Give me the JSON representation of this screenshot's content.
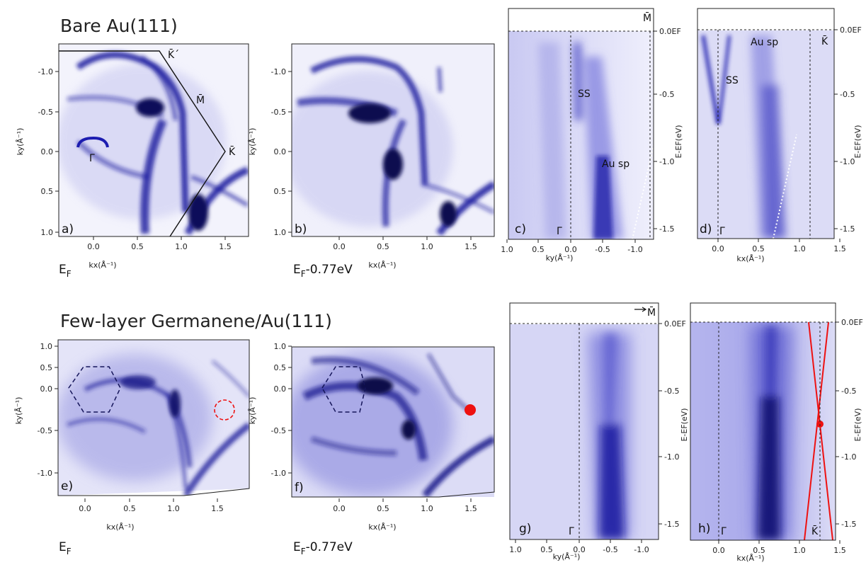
{
  "titles": {
    "top": "Bare Au(111)",
    "bottom": "Few-layer Germanene/Au(111)"
  },
  "colors": {
    "intensity": "#1a1acc",
    "background": "#ffffff",
    "dirac": "#ee1111",
    "guide": "#222222"
  },
  "panels": [
    {
      "id": "a",
      "label": "a)",
      "condition": "E",
      "condition_sub": "F",
      "xlabel": "kx(Å⁻¹)",
      "ylabel": "ky(Å⁻¹)",
      "xticks": [
        "0.0",
        "0.5",
        "1.0",
        "1.5"
      ],
      "yticks": [
        "-1.0",
        "-0.5",
        "0.0",
        "0.5",
        "1.0"
      ],
      "points": [
        "K̄´",
        "M̄",
        "K̄",
        "Γ̄"
      ]
    },
    {
      "id": "b",
      "label": "b)",
      "condition": "E",
      "condition_sub": "F",
      "condition_suffix": "-0.77eV",
      "xlabel": "kx(Å⁻¹)",
      "ylabel": "ky(Å⁻¹)",
      "xticks": [
        "0.0",
        "0.5",
        "1.0",
        "1.5"
      ],
      "yticks": [
        "-1.0",
        "-0.5",
        "0.0",
        "0.5",
        "1.0"
      ]
    },
    {
      "id": "c",
      "label": "c)",
      "xlabel": "ky(Å⁻¹)",
      "ylabel": "E-EF(eV)",
      "xticks": [
        "1.0",
        "0.5",
        "0.0",
        "-0.5",
        "-1.0"
      ],
      "eticks": [
        "0.0EF",
        "-0.5",
        "-1.0",
        "-1.5"
      ],
      "annotations": [
        "SS",
        "Au sp",
        "Γ̄",
        "M̄"
      ]
    },
    {
      "id": "d",
      "label": "d)",
      "xlabel": "kx(Å⁻¹)",
      "ylabel": "E-EF(eV)",
      "xticks": [
        "0.0",
        "0.5",
        "1.0",
        "1.5"
      ],
      "eticks": [
        "0.0EF",
        "-0.5",
        "-1.0",
        "-1.5"
      ],
      "annotations": [
        "SS",
        "Au sp",
        "Γ̄",
        "K̄"
      ]
    },
    {
      "id": "e",
      "label": "e)",
      "condition": "E",
      "condition_sub": "F",
      "xlabel": "kx(Å⁻¹)",
      "ylabel": "ky(Å⁻¹)",
      "xticks": [
        "0.0",
        "0.5",
        "1.0",
        "1.5"
      ],
      "yticks": [
        "1.0",
        "0.5",
        "0.0",
        "-0.5",
        "-1.0"
      ]
    },
    {
      "id": "f",
      "label": "f)",
      "condition": "E",
      "condition_sub": "F",
      "condition_suffix": "-0.77eV",
      "xlabel": "kx(Å⁻¹)",
      "ylabel": "ky(Å⁻¹)",
      "xticks": [
        "0.0",
        "0.5",
        "1.0",
        "1.5"
      ],
      "yticks": [
        "1.0",
        "0.5",
        "0.0",
        "-0.5",
        "-1.0"
      ]
    },
    {
      "id": "g",
      "label": "g)",
      "xlabel": "ky(Å⁻¹)",
      "ylabel": "E-EF(eV)",
      "xticks": [
        "1.0",
        "0.5",
        "0.0",
        "-0.5",
        "-1.0"
      ],
      "eticks": [
        "0.0EF",
        "-0.5",
        "-1.0",
        "-1.5"
      ],
      "annotations": [
        "Γ̄",
        "M̄"
      ]
    },
    {
      "id": "h",
      "label": "h)",
      "xlabel": "kx(Å⁻¹)",
      "ylabel": "E-EF(eV)",
      "xticks": [
        "0.0",
        "0.5",
        "1.0",
        "1.5"
      ],
      "eticks": [
        "0.0EF",
        "-0.5",
        "-1.0",
        "-1.5"
      ],
      "annotations": [
        "Γ̄",
        "K̄"
      ]
    }
  ]
}
